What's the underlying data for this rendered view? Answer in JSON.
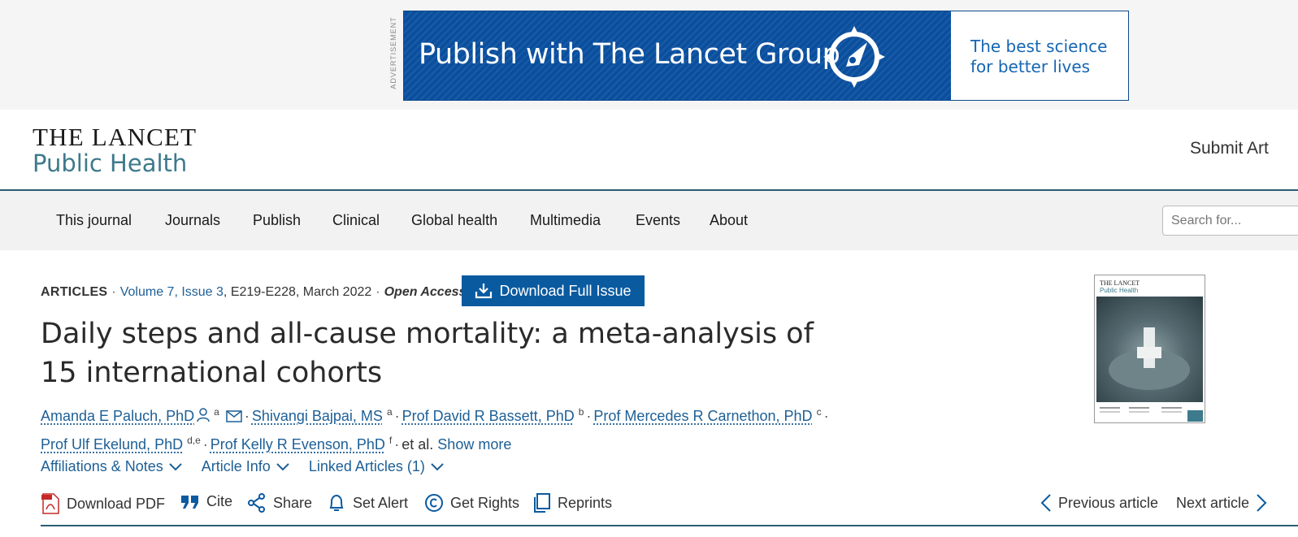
{
  "ad": {
    "tag": "ADVERTISEMENT",
    "headline": "Publish with The Lancet Group",
    "tagline_1": "The best science",
    "tagline_2": "for better lives"
  },
  "masthead": {
    "logo_line1": "THE LANCET",
    "logo_line2": "Public Health",
    "submit": "Submit Art"
  },
  "nav": {
    "items": [
      "This journal",
      "Journals",
      "Publish",
      "Clinical",
      "Global health",
      "Multimedia",
      "Events",
      "About"
    ],
    "search_placeholder": "Search for..."
  },
  "article": {
    "type": "ARTICLES",
    "volume": "Volume 7, Issue 3",
    "pages_date": ", E219-E228, March 2022",
    "access": "Open Access",
    "download_issue": "Download Full Issue",
    "title": "Daily steps and all-cause mortality: a meta-analysis of 15 international cohorts",
    "authors": [
      {
        "name": "Amanda E Paluch, PhD",
        "sup": "a"
      },
      {
        "name": "Shivangi Bajpai, MS",
        "sup": "a"
      },
      {
        "name": "Prof David R Bassett, PhD",
        "sup": "b"
      },
      {
        "name": "Prof Mercedes R Carnethon, PhD",
        "sup": "c"
      },
      {
        "name": "Prof Ulf Ekelund, PhD",
        "sup": "d,e"
      },
      {
        "name": "Prof Kelly R Evenson, PhD",
        "sup": "f"
      }
    ],
    "et_al": "et al.",
    "show_more": "Show more",
    "accordions": [
      "Affiliations & Notes",
      "Article Info",
      "Linked Articles (1)"
    ],
    "tools": {
      "pdf": "Download PDF",
      "cite": "Cite",
      "share": "Share",
      "alert": "Set Alert",
      "rights": "Get Rights",
      "reprints": "Reprints",
      "prev": "Previous article",
      "next": "Next article"
    }
  },
  "cover": {
    "line1": "THE LANCET",
    "line2": "Public Health"
  },
  "colors": {
    "link": "#1d5f96",
    "button_blue": "#0a5aa0",
    "masthead_rule": "#2b5d72",
    "logo_teal": "#3d7a8c"
  }
}
